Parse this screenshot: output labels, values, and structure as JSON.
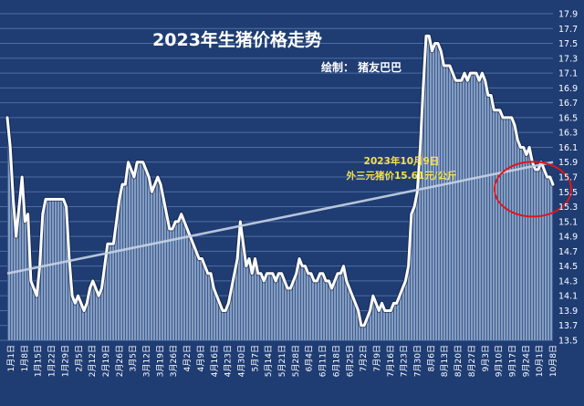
{
  "chart_data": {
    "type": "area",
    "title": "2023年生猪价格走势",
    "credit": "绘制：  猪友巴巴",
    "annotation": {
      "line1": "2023年10月9日",
      "line2": "外三元猪价15.61元/公斤",
      "date": "10月9日",
      "value": 15.61
    },
    "ylim": [
      13.5,
      17.9
    ],
    "y_ticks": [
      13.5,
      13.7,
      13.9,
      14.1,
      14.3,
      14.5,
      14.7,
      14.9,
      15.1,
      15.3,
      15.5,
      15.7,
      15.9,
      16.1,
      16.3,
      16.5,
      16.7,
      16.9,
      17.1,
      17.3,
      17.5,
      17.7,
      17.9
    ],
    "x_tick_labels": [
      "1月1日",
      "1月8日",
      "1月15日",
      "1月22日",
      "1月29日",
      "2月5日",
      "2月12日",
      "2月19日",
      "2月26日",
      "3月5日",
      "3月12日",
      "3月19日",
      "3月26日",
      "4月2日",
      "4月9日",
      "4月16日",
      "4月23日",
      "4月30日",
      "5月7日",
      "5月14日",
      "5月21日",
      "5月28日",
      "6月4日",
      "6月11日",
      "6月18日",
      "6月25日",
      "7月2日",
      "7月9日",
      "7月16日",
      "7月23日",
      "7月30日",
      "8月6日",
      "8月13日",
      "8月20日",
      "8月27日",
      "9月3日",
      "9月10日",
      "9月17日",
      "9月24日",
      "10月1日",
      "10月8日"
    ],
    "trend": {
      "start": 14.4,
      "end": 15.9
    },
    "series": [
      {
        "values": [
          16.5,
          16.1,
          15.4,
          14.9,
          15.3,
          15.7,
          15.1,
          15.2,
          14.3,
          14.2,
          14.1,
          14.5,
          15.2,
          15.4,
          15.4,
          15.4,
          15.4,
          15.4,
          15.4,
          15.4,
          15.3,
          14.6,
          14.1,
          14.0,
          14.1,
          14.0,
          13.9,
          14.0,
          14.2,
          14.3,
          14.2,
          14.1,
          14.2,
          14.5,
          14.8,
          14.8,
          14.8,
          15.1,
          15.4,
          15.6,
          15.6,
          15.9,
          15.8,
          15.7,
          15.9,
          15.9,
          15.9,
          15.8,
          15.7,
          15.5,
          15.6,
          15.7,
          15.6,
          15.4,
          15.2,
          15.0,
          15.0,
          15.1,
          15.1,
          15.2,
          15.1,
          15.0,
          14.9,
          14.8,
          14.7,
          14.6,
          14.6,
          14.5,
          14.4,
          14.4,
          14.2,
          14.1,
          14.0,
          13.9,
          13.9,
          14.0,
          14.2,
          14.4,
          14.6,
          15.1,
          14.8,
          14.5,
          14.6,
          14.4,
          14.6,
          14.4,
          14.4,
          14.3,
          14.4,
          14.4,
          14.4,
          14.3,
          14.4,
          14.4,
          14.3,
          14.2,
          14.2,
          14.3,
          14.4,
          14.6,
          14.5,
          14.5,
          14.4,
          14.4,
          14.3,
          14.3,
          14.4,
          14.4,
          14.3,
          14.3,
          14.2,
          14.3,
          14.4,
          14.4,
          14.5,
          14.3,
          14.2,
          14.1,
          14.0,
          13.9,
          13.7,
          13.7,
          13.8,
          13.9,
          14.1,
          14.0,
          13.9,
          14.0,
          13.9,
          13.9,
          13.9,
          14.0,
          14.0,
          14.1,
          14.2,
          14.3,
          14.5,
          15.2,
          15.3,
          15.5,
          16.1,
          16.9,
          17.6,
          17.6,
          17.4,
          17.5,
          17.5,
          17.4,
          17.2,
          17.2,
          17.2,
          17.1,
          17.0,
          17.0,
          17.0,
          17.1,
          17.0,
          17.1,
          17.1,
          17.1,
          17.0,
          17.1,
          17.0,
          16.8,
          16.8,
          16.6,
          16.6,
          16.6,
          16.5,
          16.5,
          16.5,
          16.5,
          16.4,
          16.2,
          16.1,
          16.1,
          16.0,
          16.1,
          15.9,
          15.8,
          15.8,
          15.9,
          15.8,
          15.7,
          15.7,
          15.6
        ]
      }
    ]
  }
}
